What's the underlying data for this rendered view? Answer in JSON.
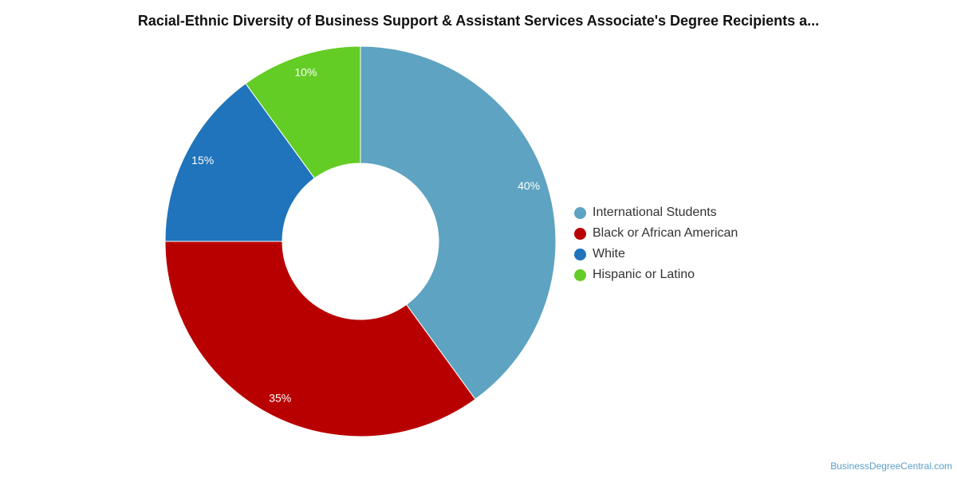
{
  "chart_data": {
    "type": "pie",
    "title": "Racial-Ethnic Diversity of Business Support & Assistant Services Associate's Degree Recipients a...",
    "categories": [
      "International Students",
      "Black or African American",
      "White",
      "Hispanic or Latino"
    ],
    "values": [
      40,
      35,
      15,
      10
    ],
    "value_labels": [
      "40%",
      "35%",
      "15%",
      "10%"
    ],
    "colors": [
      "#5ea3c1",
      "#b90000",
      "#1f74bb",
      "#63cd25"
    ],
    "legend": "right",
    "donut": true
  },
  "watermark": "BusinessDegreeCentral.com"
}
